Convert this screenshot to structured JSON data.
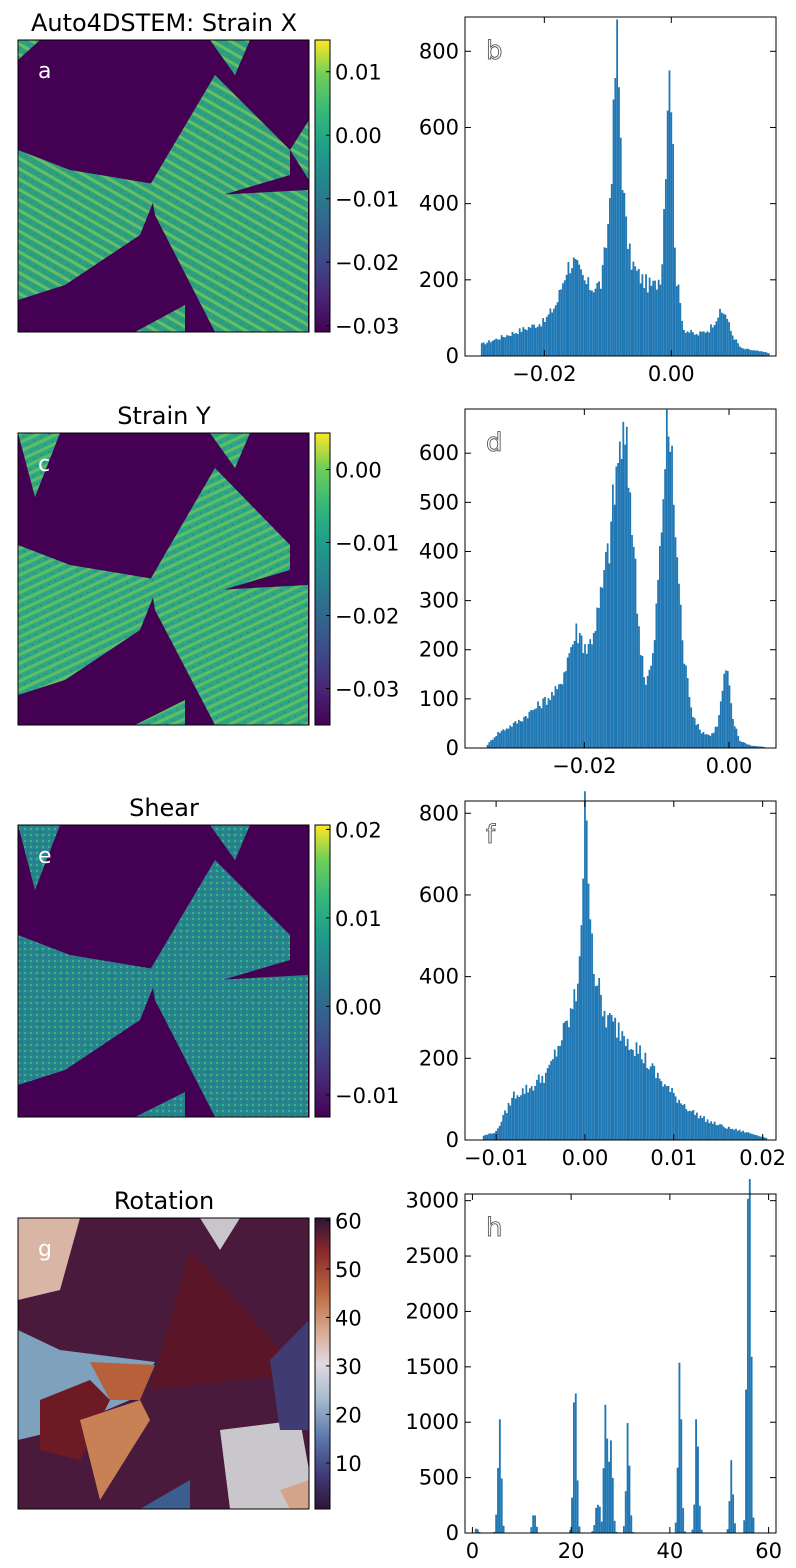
{
  "figure": {
    "panels": [
      {
        "kind": "map",
        "label": "a",
        "title": "Auto4DSTEM: Strain X",
        "colormap": "viridis",
        "colorbar": {
          "ticks": [
            "0.01",
            "0.00",
            "−0.01",
            "−0.02",
            "−0.03"
          ],
          "tick_values": [
            0.01,
            0.0,
            -0.01,
            -0.02,
            -0.03
          ],
          "range": [
            -0.031,
            0.015
          ]
        }
      },
      {
        "kind": "map",
        "label": "c",
        "title": "Strain Y",
        "colormap": "viridis",
        "colorbar": {
          "ticks": [
            "0.00",
            "−0.01",
            "−0.02",
            "−0.03"
          ],
          "tick_values": [
            0.0,
            -0.01,
            -0.02,
            -0.03
          ],
          "range": [
            -0.035,
            0.005
          ]
        }
      },
      {
        "kind": "map",
        "label": "e",
        "title": "Shear",
        "colormap": "viridis",
        "colorbar": {
          "ticks": [
            "0.02",
            "0.01",
            "0.00",
            "−0.01"
          ],
          "tick_values": [
            0.02,
            0.01,
            0.0,
            -0.01
          ],
          "range": [
            -0.0125,
            0.0205
          ]
        }
      },
      {
        "kind": "map",
        "label": "g",
        "title": "Rotation",
        "colormap": "twilight",
        "colorbar": {
          "ticks": [
            "60",
            "50",
            "40",
            "30",
            "20",
            "10"
          ],
          "tick_values": [
            60,
            50,
            40,
            30,
            20,
            10
          ],
          "range": [
            0.5,
            60.5
          ]
        }
      }
    ]
  },
  "chart_data": [
    {
      "type": "bar",
      "label": "b",
      "title": "",
      "xlabel": "",
      "ylabel": "",
      "xlim": [
        -0.0325,
        0.0165
      ],
      "ylim": [
        0,
        890
      ],
      "x_ticks": [
        -0.02,
        0.0
      ],
      "x_tick_labels": [
        "−0.02",
        "0.00"
      ],
      "y_ticks": [
        0,
        200,
        400,
        600,
        800
      ],
      "y_tick_labels": [
        "0",
        "200",
        "400",
        "600",
        "800"
      ],
      "bin_range": [
        -0.03,
        0.0155
      ],
      "x": [
        -0.03,
        -0.025,
        -0.02,
        -0.018,
        -0.0165,
        -0.0155,
        -0.0145,
        -0.0135,
        -0.0125,
        -0.011,
        -0.01,
        -0.0092,
        -0.0086,
        -0.0082,
        -0.0078,
        -0.0072,
        -0.0065,
        -0.0055,
        -0.0045,
        -0.0035,
        -0.0025,
        -0.0015,
        -0.0008,
        -0.0003,
        0.0002,
        0.0007,
        0.002,
        0.004,
        0.006,
        0.0075,
        0.0085,
        0.0095,
        0.011,
        0.0155
      ],
      "values": [
        30,
        60,
        90,
        140,
        230,
        250,
        220,
        190,
        180,
        190,
        330,
        560,
        850,
        680,
        520,
        350,
        260,
        220,
        200,
        185,
        185,
        220,
        550,
        820,
        590,
        220,
        70,
        55,
        70,
        110,
        115,
        60,
        20,
        8
      ]
    },
    {
      "type": "bar",
      "label": "d",
      "title": "",
      "xlabel": "",
      "ylabel": "",
      "xlim": [
        -0.0365,
        0.0065
      ],
      "ylim": [
        0,
        690
      ],
      "x_ticks": [
        -0.02,
        0.0
      ],
      "x_tick_labels": [
        "−0.02",
        "0.00"
      ],
      "y_ticks": [
        0,
        100,
        200,
        300,
        400,
        500,
        600
      ],
      "y_tick_labels": [
        "0",
        "100",
        "200",
        "300",
        "400",
        "500",
        "600"
      ],
      "bin_range": [
        -0.0335,
        0.005
      ],
      "x": [
        -0.0335,
        -0.032,
        -0.029,
        -0.026,
        -0.0235,
        -0.022,
        -0.021,
        -0.0195,
        -0.018,
        -0.0165,
        -0.0155,
        -0.0148,
        -0.0142,
        -0.0135,
        -0.0125,
        -0.0115,
        -0.0105,
        -0.0095,
        -0.0088,
        -0.0082,
        -0.0076,
        -0.007,
        -0.0062,
        -0.005,
        -0.004,
        -0.0025,
        -0.0015,
        -0.0008,
        -0.0003,
        0.0005,
        0.0015,
        0.003,
        0.005
      ],
      "values": [
        5,
        30,
        55,
        90,
        120,
        200,
        240,
        200,
        280,
        420,
        570,
        630,
        600,
        500,
        250,
        130,
        180,
        400,
        610,
        650,
        500,
        350,
        180,
        70,
        35,
        25,
        50,
        130,
        165,
        60,
        15,
        5,
        2
      ]
    },
    {
      "type": "bar",
      "label": "f",
      "title": "",
      "xlabel": "",
      "ylabel": "",
      "xlim": [
        -0.0135,
        0.0215
      ],
      "ylim": [
        0,
        830
      ],
      "x_ticks": [
        -0.01,
        0.0,
        0.01,
        0.02
      ],
      "x_tick_labels": [
        "−0.01",
        "0.00",
        "0.01",
        "0.02"
      ],
      "y_ticks": [
        0,
        200,
        400,
        600,
        800
      ],
      "y_tick_labels": [
        "0",
        "200",
        "400",
        "600",
        "800"
      ],
      "bin_range": [
        -0.0115,
        0.0205
      ],
      "x": [
        -0.0115,
        -0.01,
        -0.008,
        -0.006,
        -0.004,
        -0.003,
        -0.002,
        -0.001,
        -0.0005,
        0.0,
        0.0005,
        0.001,
        0.002,
        0.003,
        0.004,
        0.005,
        0.006,
        0.008,
        0.01,
        0.012,
        0.014,
        0.016,
        0.018,
        0.0205
      ],
      "values": [
        10,
        20,
        110,
        130,
        170,
        230,
        280,
        350,
        500,
        780,
        650,
        430,
        310,
        285,
        270,
        250,
        220,
        160,
        110,
        70,
        45,
        30,
        20,
        5
      ]
    },
    {
      "type": "bar",
      "label": "h",
      "title": "",
      "xlabel": "",
      "ylabel": "",
      "xlim": [
        -1.5,
        61.5
      ],
      "ylim": [
        0,
        3060
      ],
      "x_ticks": [
        0,
        20,
        40,
        60
      ],
      "x_tick_labels": [
        "0",
        "20",
        "40",
        "60"
      ],
      "y_ticks": [
        0,
        500,
        1000,
        1500,
        2000,
        2500,
        3000
      ],
      "y_tick_labels": [
        "0",
        "500",
        "1000",
        "1500",
        "2000",
        "2500",
        "3000"
      ],
      "bin_range": [
        0.5,
        60.5
      ],
      "peaks": [
        {
          "center": 0.8,
          "height": 40,
          "width": 0.4
        },
        {
          "center": 5.5,
          "height": 1020,
          "width": 0.35
        },
        {
          "center": 12.5,
          "height": 190,
          "width": 0.35
        },
        {
          "center": 20.8,
          "height": 1440,
          "width": 0.35
        },
        {
          "center": 25.5,
          "height": 300,
          "width": 0.5
        },
        {
          "center": 27.0,
          "height": 1210,
          "width": 0.35
        },
        {
          "center": 28.0,
          "height": 800,
          "width": 0.4
        },
        {
          "center": 31.5,
          "height": 960,
          "width": 0.35
        },
        {
          "center": 42.0,
          "height": 1500,
          "width": 0.35
        },
        {
          "center": 45.5,
          "height": 1050,
          "width": 0.35
        },
        {
          "center": 52.5,
          "height": 600,
          "width": 0.35
        },
        {
          "center": 56.2,
          "height": 2920,
          "width": 0.3
        },
        {
          "center": 55.8,
          "height": 2650,
          "width": 0.3
        }
      ]
    }
  ]
}
